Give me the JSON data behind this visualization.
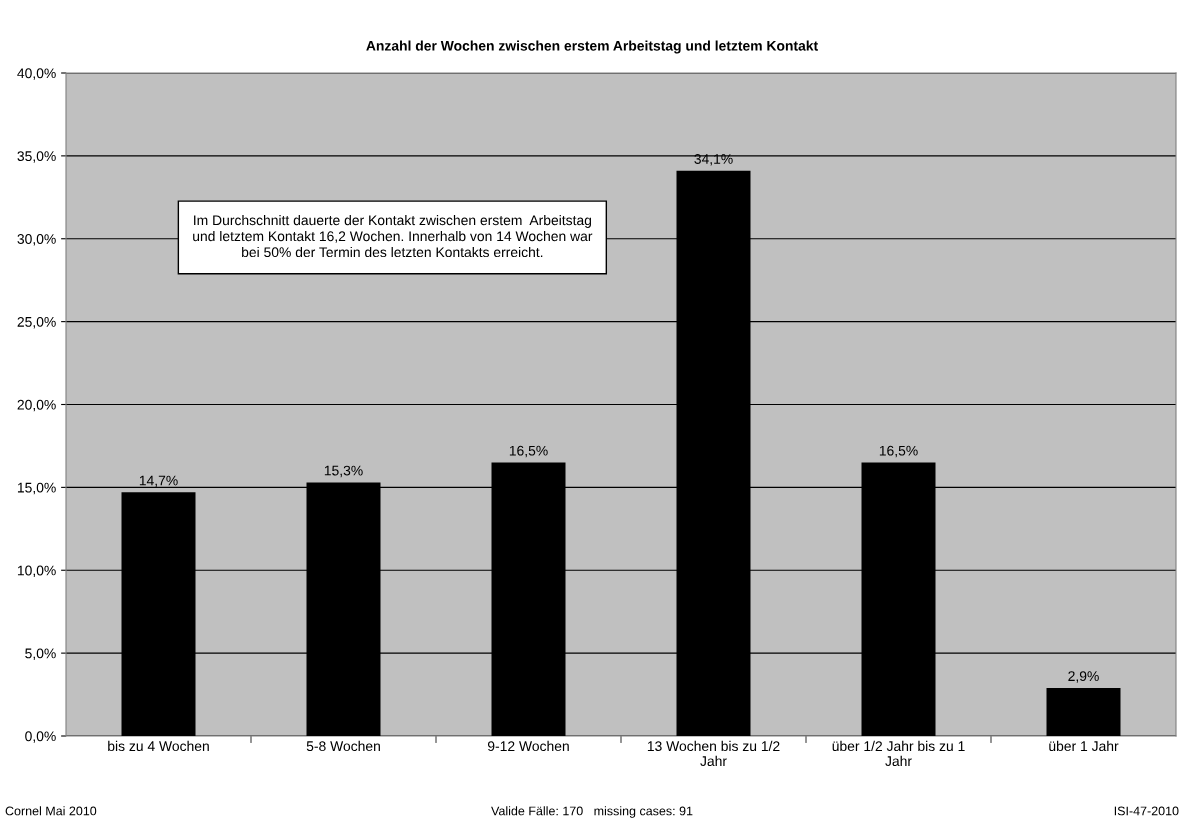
{
  "chart_data": {
    "type": "bar",
    "title": "Anzahl der Wochen zwischen erstem Arbeitstag und letztem Kontakt",
    "categories": [
      "bis zu 4 Wochen",
      "5-8 Wochen",
      "9-12 Wochen",
      "13 Wochen bis zu 1/2\nJahr",
      "über 1/2 Jahr bis zu 1\nJahr",
      "über 1 Jahr"
    ],
    "values": [
      14.7,
      15.3,
      16.5,
      34.1,
      16.5,
      2.9
    ],
    "value_labels": [
      "14,7%",
      "15,3%",
      "16,5%",
      "34,1%",
      "16,5%",
      "2,9%"
    ],
    "color": "#000000",
    "ylim": [
      0,
      40
    ],
    "yticks": [
      {
        "value": 0,
        "label": "0,0%"
      },
      {
        "value": 5,
        "label": "5,0%"
      },
      {
        "value": 10,
        "label": "10,0%"
      },
      {
        "value": 15,
        "label": "15,0%"
      },
      {
        "value": 20,
        "label": "20,0%"
      },
      {
        "value": 25,
        "label": "25,0%"
      },
      {
        "value": 30,
        "label": "30,0%"
      },
      {
        "value": 35,
        "label": "35,0%"
      },
      {
        "value": 40,
        "label": "40,0%"
      }
    ],
    "grid": "y",
    "annotations": [
      "Im Durchschnitt dauerte der Kontakt zwischen erstem  Arbeitstag\nund letztem Kontakt 16,2 Wochen. Innerhalb von 14 Wochen war\nbei 50% der Termin des letzten Kontakts erreicht.",
      "Cornel Mai 2010",
      "Valide Fälle: 170   missing cases: 91",
      "ISI-47-2010"
    ]
  }
}
